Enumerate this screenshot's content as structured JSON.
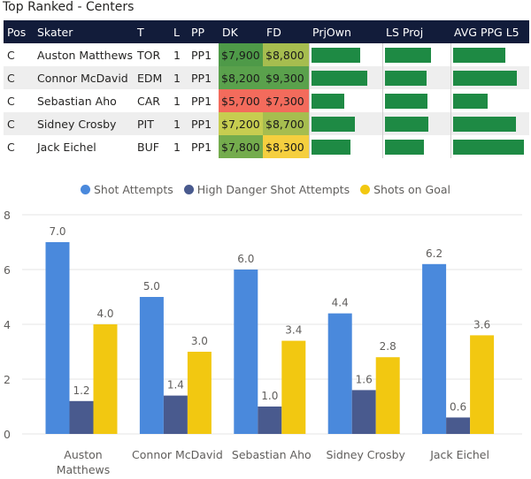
{
  "title": "Top Ranked - Centers",
  "table": {
    "headers": [
      "Pos",
      "Skater",
      "T",
      "L",
      "PP",
      "DK",
      "FD",
      "PrjOwn",
      "LS Proj",
      "AVG PPG L5"
    ],
    "rows": [
      {
        "pos": "C",
        "skater": "Auston Matthews",
        "team": "TOR",
        "line": "1",
        "pp": "PP1",
        "dk": "$7,900",
        "fd": "$8,800",
        "dk_color": "#4e9a48",
        "fd_color": "#a6bd4f",
        "prjown": 0.73,
        "lsproj": 0.74,
        "avgppg": 0.72
      },
      {
        "pos": "C",
        "skater": "Connor McDavid",
        "team": "EDM",
        "line": "1",
        "pp": "PP1",
        "dk": "$8,200",
        "fd": "$9,300",
        "dk_color": "#5aa14c",
        "fd_color": "#5aa14c",
        "prjown": 0.82,
        "lsproj": 0.68,
        "avgppg": 0.87
      },
      {
        "pos": "C",
        "skater": "Sebastian Aho",
        "team": "CAR",
        "line": "1",
        "pp": "PP1",
        "dk": "$5,700",
        "fd": "$7,300",
        "dk_color": "#f36b5c",
        "fd_color": "#f36b5c",
        "prjown": 0.51,
        "lsproj": 0.69,
        "avgppg": 0.49
      },
      {
        "pos": "C",
        "skater": "Sidney Crosby",
        "team": "PIT",
        "line": "1",
        "pp": "PP1",
        "dk": "$7,200",
        "fd": "$8,700",
        "dk_color": "#c7cd50",
        "fd_color": "#a6bd4f",
        "prjown": 0.65,
        "lsproj": 0.71,
        "avgppg": 0.85
      },
      {
        "pos": "C",
        "skater": "Jack Eichel",
        "team": "BUF",
        "line": "1",
        "pp": "PP1",
        "dk": "$7,800",
        "fd": "$8,300",
        "dk_color": "#74ac4d",
        "fd_color": "#f5cf3f",
        "prjown": 0.59,
        "lsproj": 0.64,
        "avgppg": 0.96
      }
    ]
  },
  "colors": {
    "shot_attempts": "#4a89dc",
    "hdsa": "#495a8e",
    "sog": "#f2c811",
    "grid": "#e6e6e6",
    "label": "#605e5c"
  },
  "chart_data": {
    "type": "bar",
    "categories": [
      "Auston Matthews",
      "Connor McDavid",
      "Sebastian Aho",
      "Sidney Crosby",
      "Jack Eichel"
    ],
    "category_lines": [
      [
        "Auston",
        "Matthews"
      ],
      [
        "Connor McDavid"
      ],
      [
        "Sebastian Aho"
      ],
      [
        "Sidney Crosby"
      ],
      [
        "Jack Eichel"
      ]
    ],
    "series": [
      {
        "name": "Shot Attempts",
        "values": [
          7.0,
          5.0,
          6.0,
          4.4,
          6.2
        ],
        "labels": [
          "7.0",
          "5.0",
          "6.0",
          "4.4",
          "6.2"
        ]
      },
      {
        "name": "High Danger Shot Attempts",
        "values": [
          1.2,
          1.4,
          1.0,
          1.6,
          0.6
        ],
        "labels": [
          "1.2",
          "1.4",
          "1.0",
          "1.6",
          "0.6"
        ]
      },
      {
        "name": "Shots on Goal",
        "values": [
          4.0,
          3.0,
          3.4,
          2.8,
          3.6
        ],
        "labels": [
          "4.0",
          "3.0",
          "3.4",
          "2.8",
          "3.6"
        ]
      }
    ],
    "yticks": [
      "0",
      "2",
      "4",
      "6",
      "8"
    ],
    "ylim": [
      0,
      8
    ],
    "title": "",
    "xlabel": "",
    "ylabel": ""
  }
}
